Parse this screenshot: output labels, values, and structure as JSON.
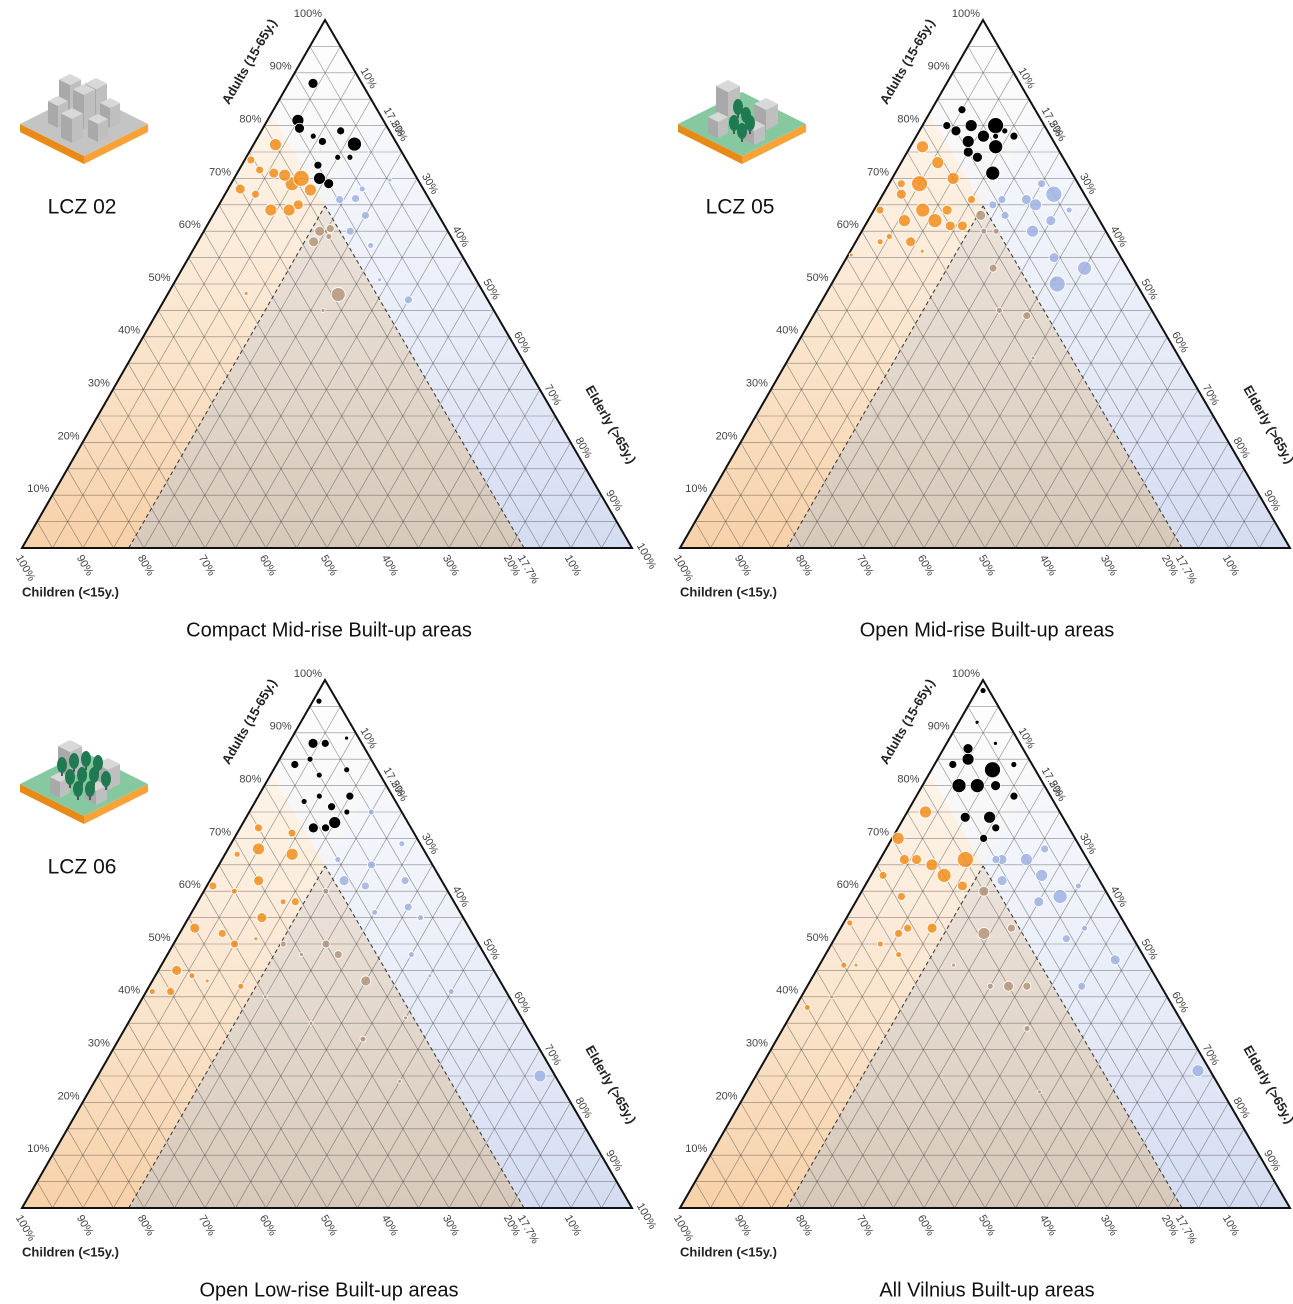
{
  "axes": {
    "adults": {
      "label": "Adults (15-65y.)",
      "ticks": [
        {
          "value": 10,
          "label": "10%"
        },
        {
          "value": 20,
          "label": "20%"
        },
        {
          "value": 30,
          "label": "30%"
        },
        {
          "value": 40,
          "label": "40%"
        },
        {
          "value": 50,
          "label": "50%"
        },
        {
          "value": 60,
          "label": "60%"
        },
        {
          "value": 70,
          "label": "70%"
        },
        {
          "value": 80,
          "label": "80%"
        },
        {
          "value": 90,
          "label": "90%"
        },
        {
          "value": 100,
          "label": "100%"
        }
      ]
    },
    "elderly": {
      "label": "Elderly (>65y.)",
      "ticks": [
        {
          "value": 10,
          "label": "10%"
        },
        {
          "value": 17.5,
          "label": "17.5%"
        },
        {
          "value": 20,
          "label": "20%"
        },
        {
          "value": 30,
          "label": "30%"
        },
        {
          "value": 40,
          "label": "40%"
        },
        {
          "value": 50,
          "label": "50%"
        },
        {
          "value": 60,
          "label": "60%"
        },
        {
          "value": 70,
          "label": "70%"
        },
        {
          "value": 80,
          "label": "80%"
        },
        {
          "value": 90,
          "label": "90%"
        },
        {
          "value": 100,
          "label": "100%"
        }
      ]
    },
    "children": {
      "label": "Children (<15y.)",
      "ticks": [
        {
          "value": 100,
          "label": "100%"
        },
        {
          "value": 90,
          "label": "90%"
        },
        {
          "value": 80,
          "label": "80%"
        },
        {
          "value": 70,
          "label": "70%"
        },
        {
          "value": 60,
          "label": "60%"
        },
        {
          "value": 50,
          "label": "50%"
        },
        {
          "value": 40,
          "label": "40%"
        },
        {
          "value": 30,
          "label": "30%"
        },
        {
          "value": 20,
          "label": "20%"
        },
        {
          "value": 17.7,
          "label": "17.7%"
        },
        {
          "value": 10,
          "label": "10%"
        }
      ]
    },
    "grid": [
      5,
      10,
      15,
      20,
      25,
      30,
      35,
      40,
      45,
      50,
      55,
      60,
      65,
      70,
      75,
      80,
      85,
      90,
      95
    ]
  },
  "reference": {
    "children": 17.7,
    "elderly": 17.5
  },
  "chart_data": [
    {
      "type": "ternary",
      "title": "Compact Mid-rise Built-up areas",
      "zone_label": "LCZ 02",
      "series": [
        {
          "color": "#000000",
          "children": [
            8,
            14,
            14.5,
            12,
            7,
            15,
            15,
            8,
            9,
            13,
            16,
            11
          ],
          "elderly": [
            4,
            5,
            6,
            11,
            16.5,
            12.5,
            16,
            13,
            17,
            9,
            14,
            15
          ],
          "sizes": [
            5,
            6,
            5,
            4,
            7,
            4,
            5,
            4,
            3,
            3,
            6,
            3
          ]
        },
        {
          "color": "#f28e1c",
          "children": [
            30,
            25.5,
            20,
            21,
            22,
            27,
            18.6,
            39,
            21.4,
            25,
            23,
            19,
            28,
            24
          ],
          "elderly": [
            2,
            1,
            3.6,
            10,
            13,
            9,
            13.6,
            12.8,
            8,
            3.4,
            6,
            11,
            5,
            12
          ],
          "sizes": [
            5,
            4,
            6,
            7,
            5,
            6,
            6,
            2,
            6,
            4,
            5,
            8,
            4,
            6
          ]
        },
        {
          "color": "#b5977a",
          "children": [
            23,
            24,
            28,
            19,
            20,
            21
          ],
          "elderly": [
            19,
            28,
            27,
            20.5,
            21,
            19
          ],
          "sizes": [
            5,
            7,
            2,
            4,
            3,
            5
          ]
        },
        {
          "color": "#9fb2e3",
          "children": [
            14.7,
            12,
            14,
            4.6,
            13,
            15.8,
            12,
            10,
            16
          ],
          "elderly": [
            19.3,
            25,
            28.7,
            25.7,
            40,
            33.4,
            21.8,
            22,
            24
          ],
          "sizes": [
            4,
            4,
            3,
            2,
            4,
            2,
            4,
            3,
            4
          ]
        }
      ]
    },
    {
      "type": "ternary",
      "title": "Open Mid-rise Built-up areas",
      "zone_label": "LCZ 05",
      "series": [
        {
          "color": "#000000",
          "children": [
            8,
            12,
            15,
            10,
            14,
            6,
            16,
            11,
            13,
            9,
            15,
            12,
            7,
            14
          ],
          "elderly": [
            12,
            8,
            6,
            14,
            12,
            16,
            4,
            11,
            16,
            13,
            10,
            5,
            14,
            9
          ],
          "sizes": [
            8,
            6,
            5,
            7,
            5,
            4,
            4,
            6,
            7,
            3,
            5,
            4,
            3,
            6
          ]
        },
        {
          "color": "#f28e1c",
          "children": [
            22,
            26,
            30,
            35,
            28,
            20,
            24,
            32,
            38,
            25,
            19,
            27,
            33,
            21,
            29,
            36,
            23,
            44,
            32
          ],
          "elderly": [
            2,
            5,
            3,
            1,
            8,
            10,
            12,
            6,
            4,
            14,
            15,
            11,
            9,
            6,
            2,
            5,
            16,
            0.5,
            11.8
          ],
          "sizes": [
            6,
            8,
            5,
            4,
            7,
            6,
            5,
            6,
            3,
            5,
            4,
            7,
            5,
            6,
            4,
            3,
            5,
            2,
            2
          ]
        },
        {
          "color": "#b5977a",
          "children": [
            20,
            22,
            19,
            25,
            21,
            18,
            24
          ],
          "elderly": [
            20,
            25,
            18,
            30,
            35,
            22,
            40
          ],
          "sizes": [
            3,
            4,
            5,
            3,
            4,
            3,
            2
          ]
        },
        {
          "color": "#9fb2e3",
          "children": [
            14,
            10,
            6,
            12,
            8,
            15,
            4,
            11,
            9,
            16,
            13,
            7,
            5,
            13
          ],
          "elderly": [
            20,
            24,
            25,
            28,
            30,
            22,
            32,
            34,
            26,
            19,
            36,
            40,
            28,
            37
          ],
          "sizes": [
            4,
            5,
            4,
            6,
            5,
            4,
            3,
            5,
            6,
            4,
            3,
            7,
            8,
            8
          ]
        }
      ]
    },
    {
      "type": "ternary",
      "title": "Open Low-rise Built-up areas",
      "zone_label": "LCZ 06",
      "series": [
        {
          "color": "#000000",
          "children": [
            3,
            8,
            12,
            14,
            6,
            10,
            16,
            9,
            13,
            5,
            11,
            15,
            7,
            2,
            12,
            10
          ],
          "elderly": [
            1,
            4,
            10,
            14,
            6,
            8,
            12,
            16,
            3,
            12,
            13,
            8,
            15,
            9,
            15,
            5
          ],
          "sizes": [
            3,
            5,
            3,
            4,
            4,
            3,
            5,
            3,
            4,
            3,
            4,
            3,
            4,
            2,
            6,
            3
          ]
        },
        {
          "color": "#f28e1c",
          "children": [
            25,
            30,
            35,
            40,
            45,
            50,
            55,
            28,
            33,
            38,
            43,
            48,
            22,
            26,
            31,
            36,
            41,
            52,
            58,
            20,
            27
          ],
          "elderly": [
            3,
            8,
            5,
            10,
            2,
            6,
            4,
            14,
            12,
            1,
            15,
            9,
            11,
            16,
            2,
            13,
            7,
            3,
            1,
            9,
            5
          ],
          "sizes": [
            4,
            5,
            3,
            4,
            5,
            3,
            4,
            3,
            5,
            4,
            3,
            2,
            6,
            4,
            3,
            2,
            4,
            5,
            3,
            4,
            6
          ]
        },
        {
          "color": "#b5977a",
          "children": [
            20,
            25,
            30,
            22,
            35,
            28,
            40,
            24,
            19,
            32,
            26
          ],
          "elderly": [
            20,
            25,
            22,
            35,
            30,
            40,
            20,
            28,
            45,
            18,
            50
          ],
          "sizes": [
            3,
            4,
            2,
            5,
            2,
            3,
            2,
            4,
            2,
            3,
            2
          ]
        },
        {
          "color": "#9fb2e3",
          "children": [
            5,
            10,
            14,
            8,
            12,
            16,
            3,
            11,
            6,
            15,
            9,
            2.5,
            13,
            7
          ],
          "elderly": [
            20,
            25,
            30,
            35,
            40,
            22,
            28,
            45,
            32,
            19,
            50,
            72.5,
            26,
            38
          ],
          "sizes": [
            3,
            4,
            3,
            4,
            3,
            5,
            3,
            2,
            4,
            3,
            3,
            6,
            4,
            3
          ]
        }
      ]
    },
    {
      "type": "ternary",
      "title": "All Vilnius Built-up areas",
      "series": [
        {
          "color": "#000000",
          "children": [
            1,
            5,
            4,
            10,
            8,
            14,
            12,
            16,
            6,
            11,
            15,
            9,
            13,
            3,
            7,
            12
          ],
          "elderly": [
            1,
            3,
            8,
            5,
            12,
            6,
            14,
            10,
            16,
            9,
            15,
            4,
            3,
            13,
            10,
            16
          ],
          "sizes": [
            3,
            2,
            2,
            6,
            5,
            7,
            6,
            5,
            4,
            7,
            4,
            5,
            4,
            3,
            8,
            4
          ]
        },
        {
          "color": "#f28e1c",
          "children": [
            22,
            28,
            35,
            42,
            50,
            25,
            32,
            38,
            45,
            55,
            20,
            26,
            30,
            40,
            48,
            23,
            34,
            60,
            29,
            36
          ],
          "elderly": [
            3,
            6,
            2,
            8,
            4,
            12,
            15,
            10,
            1,
            5,
            14,
            9,
            4,
            12,
            6,
            16,
            7,
            2,
            1,
            11
          ],
          "sizes": [
            6,
            5,
            4,
            3,
            3,
            7,
            5,
            4,
            3,
            2,
            8,
            6,
            5,
            3,
            2,
            5,
            4,
            3,
            6,
            4
          ]
        },
        {
          "color": "#b5977a",
          "children": [
            20,
            24,
            28,
            22,
            32,
            26,
            19,
            30,
            25
          ],
          "elderly": [
            20,
            24,
            30,
            36,
            22,
            40,
            28,
            48,
            33
          ],
          "sizes": [
            5,
            6,
            3,
            4,
            2,
            3,
            4,
            2,
            5
          ]
        },
        {
          "color": "#9fb2e3",
          "children": [
            14,
            10,
            6,
            12,
            8,
            16,
            4,
            11,
            9,
            13,
            7,
            5,
            2,
            15
          ],
          "elderly": [
            20,
            24,
            26,
            30,
            33,
            22,
            35,
            38,
            28,
            45,
            40,
            48,
            72,
            19
          ],
          "sizes": [
            5,
            6,
            4,
            5,
            7,
            5,
            3,
            4,
            6,
            4,
            3,
            5,
            6,
            4
          ]
        }
      ]
    }
  ]
}
